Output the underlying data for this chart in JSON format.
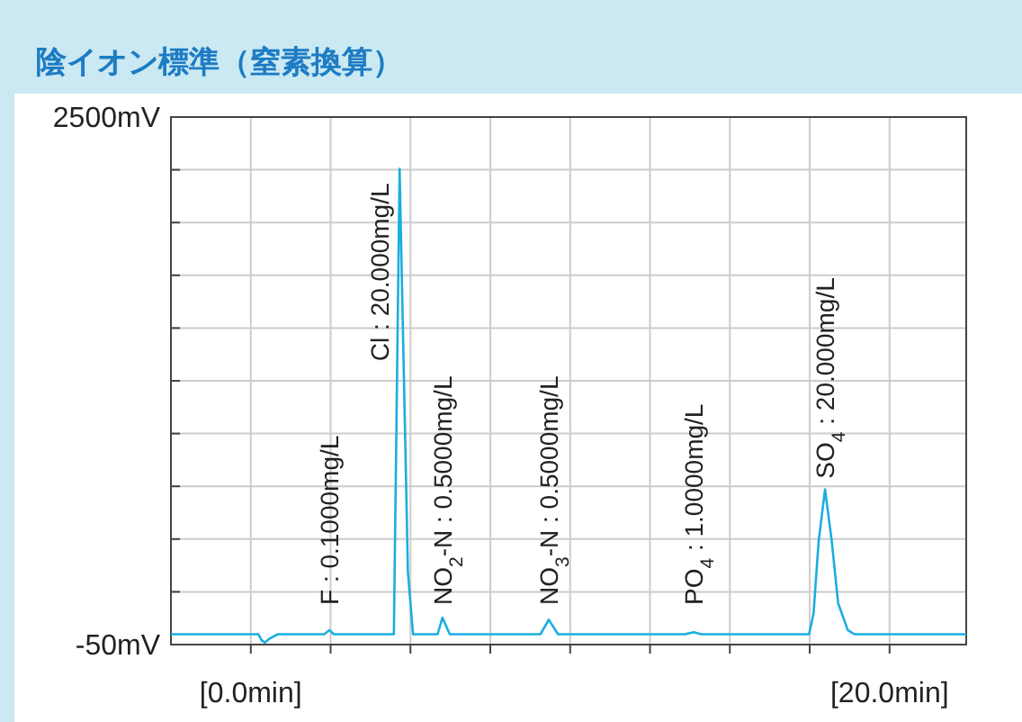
{
  "chart_data": {
    "type": "line",
    "title": "陰イオン標準（窒素換算）",
    "x": [
      -2.5,
      0.24,
      0.34,
      0.44,
      0.6,
      0.85,
      1.05,
      2.3,
      2.46,
      2.6,
      4.48,
      4.56,
      4.66,
      4.76,
      4.92,
      5.08,
      5.85,
      6.0,
      6.23,
      9.07,
      9.33,
      9.62,
      13.6,
      13.87,
      14.1,
      17.48,
      17.62,
      17.78,
      17.98,
      18.19,
      18.39,
      18.69,
      18.9,
      22.4
    ],
    "series": [
      {
        "color": "#1aaee0",
        "values": [
          0,
          0,
          -30,
          -40,
          -20,
          0,
          0,
          0,
          20,
          0,
          0,
          1000,
          2250,
          1500,
          300,
          0,
          0,
          80,
          0,
          0,
          70,
          0,
          0,
          10,
          0,
          0,
          100,
          450,
          700,
          450,
          150,
          20,
          0,
          0
        ]
      }
    ],
    "xlim": [
      -2.5,
      22.4
    ],
    "xticks": [
      {
        "value": 0,
        "label": "[0.0min]"
      },
      {
        "value": 2.5,
        "label": null
      },
      {
        "value": 5,
        "label": null
      },
      {
        "value": 7.5,
        "label": null
      },
      {
        "value": 10,
        "label": null
      },
      {
        "value": 12.5,
        "label": null
      },
      {
        "value": 15,
        "label": null
      },
      {
        "value": 17.5,
        "label": null
      },
      {
        "value": 20,
        "label": "[20.0min]"
      }
    ],
    "ylim": [
      -50,
      2500
    ],
    "yticks": [
      {
        "value": -50,
        "label": "-50mV"
      },
      {
        "value": 205,
        "label": null
      },
      {
        "value": 460,
        "label": null
      },
      {
        "value": 715,
        "label": null
      },
      {
        "value": 970,
        "label": null
      },
      {
        "value": 1225,
        "label": null
      },
      {
        "value": 1480,
        "label": null
      },
      {
        "value": 1735,
        "label": null
      },
      {
        "value": 1990,
        "label": null
      },
      {
        "value": 2245,
        "label": null
      },
      {
        "value": 2500,
        "label": "2500mV"
      }
    ],
    "grid": true,
    "marker": "none",
    "line_style": "solid",
    "annotations": [
      {
        "text": "F : 0.1000mg/L",
        "x": 2.46,
        "y": 20
      },
      {
        "text": "Cl : 20.000mg/L",
        "x": 4.66,
        "y": 2250
      },
      {
        "text": "NO$_{2}$-N : 0.5000mg/L",
        "x": 6.0,
        "y": 80
      },
      {
        "text": "NO$_{3}$-N : 0.5000mg/L",
        "x": 9.33,
        "y": 70
      },
      {
        "text": "PO$_{4}$ : 1.0000mg/L",
        "x": 13.87,
        "y": 10
      },
      {
        "text": "SO$_{4}$ : 20.000mg/L",
        "x": 17.98,
        "y": 700
      }
    ]
  }
}
